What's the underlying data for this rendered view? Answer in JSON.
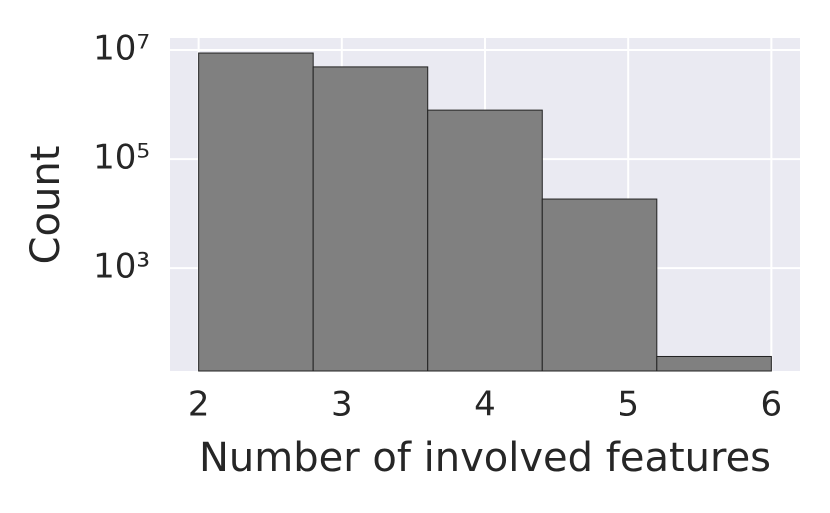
{
  "chart_data": {
    "type": "histogram",
    "x_label": "Number of involved features",
    "y_label": "Count",
    "bins": [
      2,
      2.8,
      3.6,
      4.4,
      5.2,
      6
    ],
    "values": [
      8800000,
      4900000,
      790000,
      18500,
      24
    ],
    "color": "#808080",
    "xlim": [
      1.8,
      6.2
    ],
    "xticks": [
      2,
      3,
      4,
      5,
      6
    ],
    "ylim": [
      13,
      16600000
    ],
    "y_scale": "log",
    "yticks": [
      {
        "value": 1000,
        "label": "10³"
      },
      {
        "value": 100000,
        "label": "10⁵"
      },
      {
        "value": 10000000,
        "label": "10⁷"
      }
    ],
    "grid": true
  }
}
